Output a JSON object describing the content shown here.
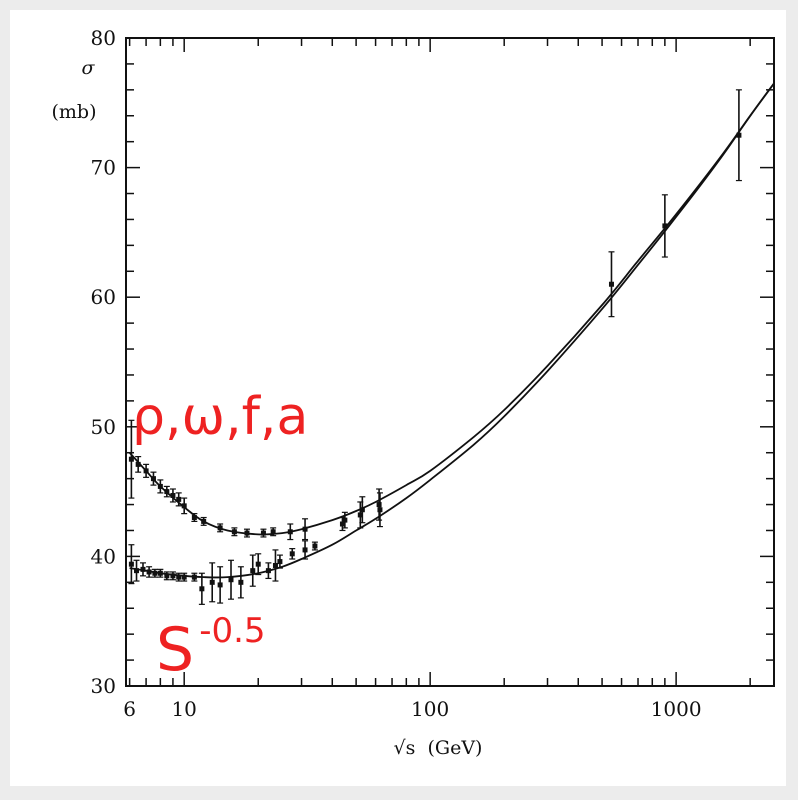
{
  "chart_data": {
    "type": "line",
    "title": "",
    "xlabel": "√s  (GeV)",
    "ylabel_line1": "σ",
    "ylabel_line2": "(mb)",
    "x_scale": "log",
    "xlim": [
      5.8,
      2500
    ],
    "ylim": [
      30,
      80
    ],
    "x_tick_labels": [
      {
        "value": 6,
        "label": "6"
      },
      {
        "value": 10,
        "label": "10"
      },
      {
        "value": 100,
        "label": "100"
      },
      {
        "value": 1000,
        "label": "1000"
      }
    ],
    "y_tick_labels": [
      {
        "value": 30,
        "label": "30"
      },
      {
        "value": 40,
        "label": "40"
      },
      {
        "value": 50,
        "label": "50"
      },
      {
        "value": 60,
        "label": "60"
      },
      {
        "value": 70,
        "label": "70"
      },
      {
        "value": 80,
        "label": "80"
      }
    ],
    "grid": false,
    "series": [
      {
        "line": [
          [
            6,
            48.0
          ],
          [
            7,
            46.6
          ],
          [
            8,
            45.4
          ],
          [
            10,
            43.8
          ],
          [
            12,
            42.7
          ],
          [
            15,
            42.0
          ],
          [
            20,
            41.7
          ],
          [
            25,
            41.8
          ],
          [
            30,
            42.1
          ],
          [
            40,
            42.8
          ],
          [
            50,
            43.5
          ],
          [
            60,
            44.2
          ],
          [
            80,
            45.5
          ],
          [
            100,
            46.6
          ],
          [
            150,
            49.2
          ],
          [
            200,
            51.3
          ],
          [
            300,
            54.7
          ],
          [
            500,
            59.4
          ],
          [
            700,
            62.8
          ],
          [
            1000,
            66.4
          ],
          [
            1500,
            70.7
          ],
          [
            2000,
            74.0
          ],
          [
            2500,
            76.5
          ]
        ],
        "points": [
          {
            "x": 6.1,
            "y": 47.5,
            "err": 3.0
          },
          {
            "x": 6.5,
            "y": 47.1,
            "err": 0.6
          },
          {
            "x": 7.0,
            "y": 46.6,
            "err": 0.5
          },
          {
            "x": 7.5,
            "y": 46.0,
            "err": 0.5
          },
          {
            "x": 8.0,
            "y": 45.4,
            "err": 0.5
          },
          {
            "x": 8.5,
            "y": 45.0,
            "err": 0.4
          },
          {
            "x": 9.0,
            "y": 44.7,
            "err": 0.5
          },
          {
            "x": 9.5,
            "y": 44.4,
            "err": 0.5
          },
          {
            "x": 10.0,
            "y": 43.9,
            "err": 0.6
          },
          {
            "x": 11.0,
            "y": 43.0,
            "err": 0.3
          },
          {
            "x": 12.0,
            "y": 42.7,
            "err": 0.3
          },
          {
            "x": 14.0,
            "y": 42.2,
            "err": 0.3
          },
          {
            "x": 16.0,
            "y": 41.9,
            "err": 0.3
          },
          {
            "x": 18.0,
            "y": 41.8,
            "err": 0.3
          },
          {
            "x": 21.0,
            "y": 41.8,
            "err": 0.3
          },
          {
            "x": 23.0,
            "y": 41.9,
            "err": 0.3
          },
          {
            "x": 27.0,
            "y": 41.9,
            "err": 0.6
          },
          {
            "x": 31.0,
            "y": 42.1,
            "err": 0.8
          },
          {
            "x": 45.0,
            "y": 42.8,
            "err": 0.6
          },
          {
            "x": 53.0,
            "y": 43.6,
            "err": 1.0
          },
          {
            "x": 62.0,
            "y": 44.0,
            "err": 1.2
          }
        ]
      },
      {
        "line": [
          [
            6,
            39.1
          ],
          [
            7,
            38.9
          ],
          [
            8,
            38.7
          ],
          [
            10,
            38.5
          ],
          [
            12,
            38.4
          ],
          [
            15,
            38.4
          ],
          [
            20,
            38.7
          ],
          [
            25,
            39.2
          ],
          [
            30,
            39.8
          ],
          [
            40,
            40.9
          ],
          [
            50,
            42.0
          ],
          [
            60,
            42.9
          ],
          [
            80,
            44.5
          ],
          [
            100,
            45.9
          ],
          [
            150,
            48.6
          ],
          [
            200,
            50.8
          ],
          [
            300,
            54.3
          ],
          [
            500,
            59.1
          ],
          [
            700,
            62.5
          ],
          [
            1000,
            66.2
          ],
          [
            1500,
            70.6
          ],
          [
            2000,
            74.0
          ],
          [
            2500,
            76.5
          ]
        ],
        "points": [
          {
            "x": 6.1,
            "y": 39.4,
            "err": 1.5
          },
          {
            "x": 6.4,
            "y": 38.9,
            "err": 0.8
          },
          {
            "x": 6.8,
            "y": 39.0,
            "err": 0.5
          },
          {
            "x": 7.2,
            "y": 38.8,
            "err": 0.4
          },
          {
            "x": 7.6,
            "y": 38.7,
            "err": 0.3
          },
          {
            "x": 8.0,
            "y": 38.7,
            "err": 0.3
          },
          {
            "x": 8.5,
            "y": 38.5,
            "err": 0.3
          },
          {
            "x": 9.0,
            "y": 38.5,
            "err": 0.3
          },
          {
            "x": 9.5,
            "y": 38.4,
            "err": 0.3
          },
          {
            "x": 10.0,
            "y": 38.4,
            "err": 0.3
          },
          {
            "x": 11.0,
            "y": 38.4,
            "err": 0.3
          },
          {
            "x": 11.8,
            "y": 37.5,
            "err": 1.2
          },
          {
            "x": 13.0,
            "y": 38.0,
            "err": 1.5
          },
          {
            "x": 14.0,
            "y": 37.8,
            "err": 1.4
          },
          {
            "x": 15.5,
            "y": 38.2,
            "err": 1.5
          },
          {
            "x": 17.0,
            "y": 38.0,
            "err": 1.2
          },
          {
            "x": 19.0,
            "y": 38.9,
            "err": 1.2
          },
          {
            "x": 20.0,
            "y": 39.4,
            "err": 0.8
          },
          {
            "x": 22.0,
            "y": 38.9,
            "err": 0.6
          },
          {
            "x": 23.5,
            "y": 39.3,
            "err": 1.2
          },
          {
            "x": 24.5,
            "y": 39.6,
            "err": 0.5
          },
          {
            "x": 27.5,
            "y": 40.2,
            "err": 0.4
          },
          {
            "x": 31.0,
            "y": 40.5,
            "err": 0.7
          },
          {
            "x": 34.0,
            "y": 40.8,
            "err": 0.3
          },
          {
            "x": 44.0,
            "y": 42.5,
            "err": 0.5
          },
          {
            "x": 52.0,
            "y": 43.2,
            "err": 1.0
          },
          {
            "x": 62.5,
            "y": 43.6,
            "err": 1.3
          }
        ]
      }
    ],
    "shared_points": [
      {
        "x": 546,
        "y": 61.0,
        "err": 2.5
      },
      {
        "x": 900,
        "y": 65.5,
        "err": 2.4
      },
      {
        "x": 1800,
        "y": 72.5,
        "err": 3.5
      }
    ],
    "annotations": [
      {
        "label": "ρ,ω,f,a"
      },
      {
        "base": "S",
        "exponent": "-0.5"
      }
    ]
  },
  "colors": {
    "annotation": "#ee2222",
    "ink": "#111111",
    "frame_bg": "#ececec"
  }
}
